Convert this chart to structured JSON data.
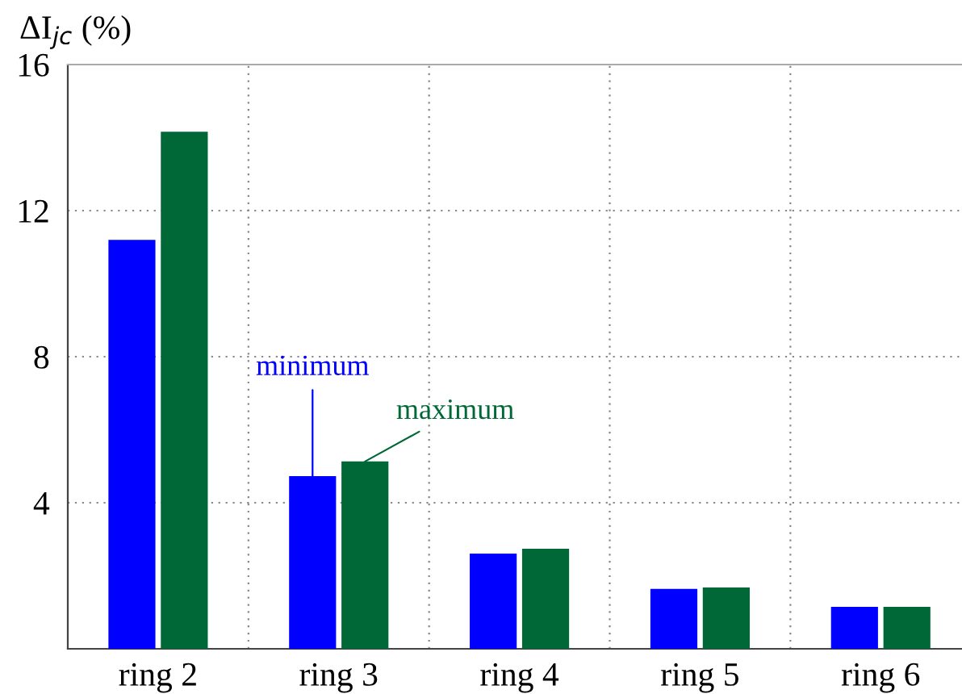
{
  "chart_data": {
    "type": "bar",
    "ylabel": "ΔI$_{jc}$ (%)",
    "categories": [
      "ring 2",
      "ring 3",
      "ring 4",
      "ring 5",
      "ring 6"
    ],
    "series": [
      {
        "name": "minimum",
        "color": "#0000ff",
        "values": [
          11.2,
          4.73,
          2.61,
          1.64,
          1.15
        ]
      },
      {
        "name": "maximum",
        "color": "#006837",
        "values": [
          14.16,
          5.13,
          2.74,
          1.68,
          1.15
        ]
      }
    ],
    "ylim": [
      0,
      16
    ],
    "yticks": [
      4,
      8,
      12,
      16
    ],
    "grid": true,
    "legend": false
  }
}
